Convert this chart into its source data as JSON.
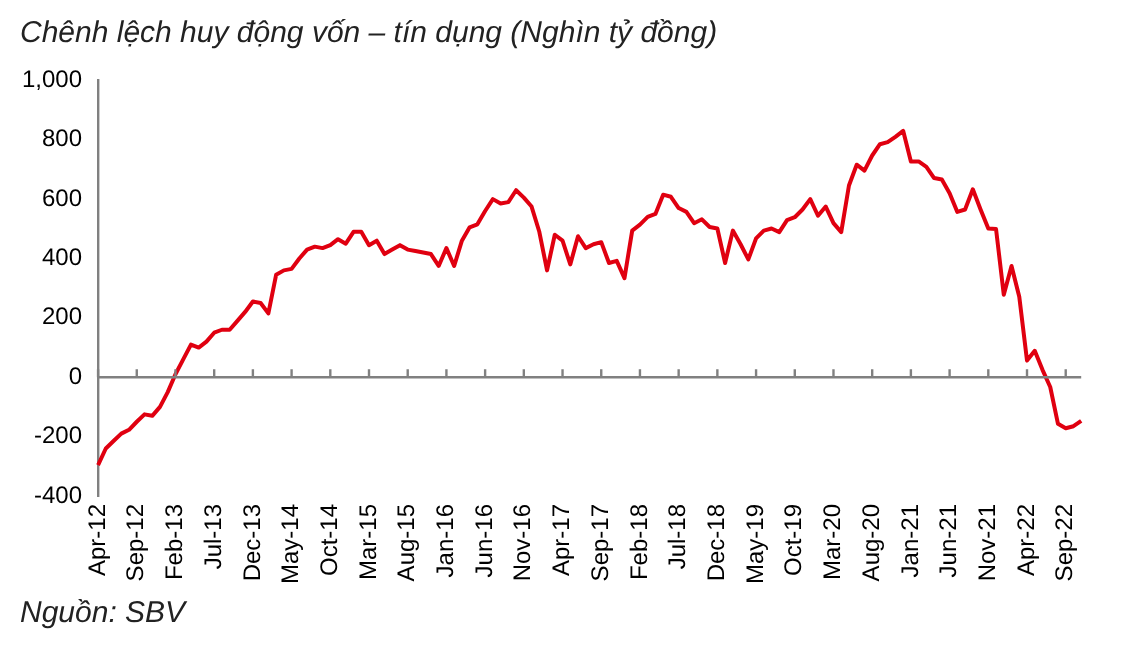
{
  "chart_data": {
    "type": "line",
    "title": "Chênh lệch huy động vốn – tín dụng (Nghìn tỷ đồng)",
    "annotations": [
      "Nguồn: SBV"
    ],
    "categories": [
      "Apr-12",
      null,
      null,
      null,
      null,
      "Sep-12",
      null,
      null,
      null,
      null,
      "Feb-13",
      null,
      null,
      null,
      null,
      "Jul-13",
      null,
      null,
      null,
      null,
      "Dec-13",
      null,
      null,
      null,
      null,
      "May-14",
      null,
      null,
      null,
      null,
      "Oct-14",
      null,
      null,
      null,
      null,
      "Mar-15",
      null,
      null,
      null,
      null,
      "Aug-15",
      null,
      null,
      null,
      null,
      "Jan-16",
      null,
      null,
      null,
      null,
      "Jun-16",
      null,
      null,
      null,
      null,
      "Nov-16",
      null,
      null,
      null,
      null,
      "Apr-17",
      null,
      null,
      null,
      null,
      "Sep-17",
      null,
      null,
      null,
      null,
      "Feb-18",
      null,
      null,
      null,
      null,
      "Jul-18",
      null,
      null,
      null,
      null,
      "Dec-18",
      null,
      null,
      null,
      null,
      "May-19",
      null,
      null,
      null,
      null,
      "Oct-19",
      null,
      null,
      null,
      null,
      "Mar-20",
      null,
      null,
      null,
      null,
      "Aug-20",
      null,
      null,
      null,
      null,
      "Jan-21",
      null,
      null,
      null,
      null,
      "Jun-21",
      null,
      null,
      null,
      null,
      "Nov-21",
      null,
      null,
      null,
      null,
      "Apr-22",
      null,
      null,
      null,
      null,
      "Sep-22",
      null,
      null
    ],
    "series": [
      {
        "color": "#e00010",
        "values": [
          -296,
          -240,
          -215,
          -190,
          -177,
          -150,
          -125,
          -130,
          -100,
          -50,
          10,
          60,
          110,
          100,
          120,
          150,
          160,
          160,
          190,
          220,
          255,
          250,
          215,
          345,
          360,
          365,
          400,
          430,
          440,
          435,
          445,
          465,
          450,
          490,
          490,
          445,
          460,
          415,
          430,
          445,
          430,
          425,
          420,
          415,
          375,
          435,
          375,
          460,
          505,
          515,
          560,
          600,
          585,
          590,
          630,
          605,
          575,
          490,
          360,
          480,
          460,
          380,
          475,
          435,
          448,
          455,
          385,
          392,
          334,
          494,
          514,
          540,
          550,
          615,
          608,
          570,
          557,
          519,
          532,
          506,
          501,
          385,
          494,
          448,
          397,
          468,
          494,
          501,
          489,
          529,
          539,
          565,
          600,
          544,
          575,
          519,
          489,
          646,
          716,
          696,
          747,
          785,
          792,
          810,
          830,
          727,
          727,
          709,
          671,
          666,
          620,
          557,
          565,
          633,
          565,
          501,
          499,
          278,
          375,
          271,
          56,
          89,
          25,
          -33,
          -157,
          -172,
          -165,
          -147
        ]
      }
    ],
    "ylim": [
      -400,
      1000
    ],
    "yticks": [
      -400,
      -200,
      0,
      200,
      400,
      600,
      800,
      {
        "value": 1000,
        "label": "1,000"
      }
    ]
  }
}
